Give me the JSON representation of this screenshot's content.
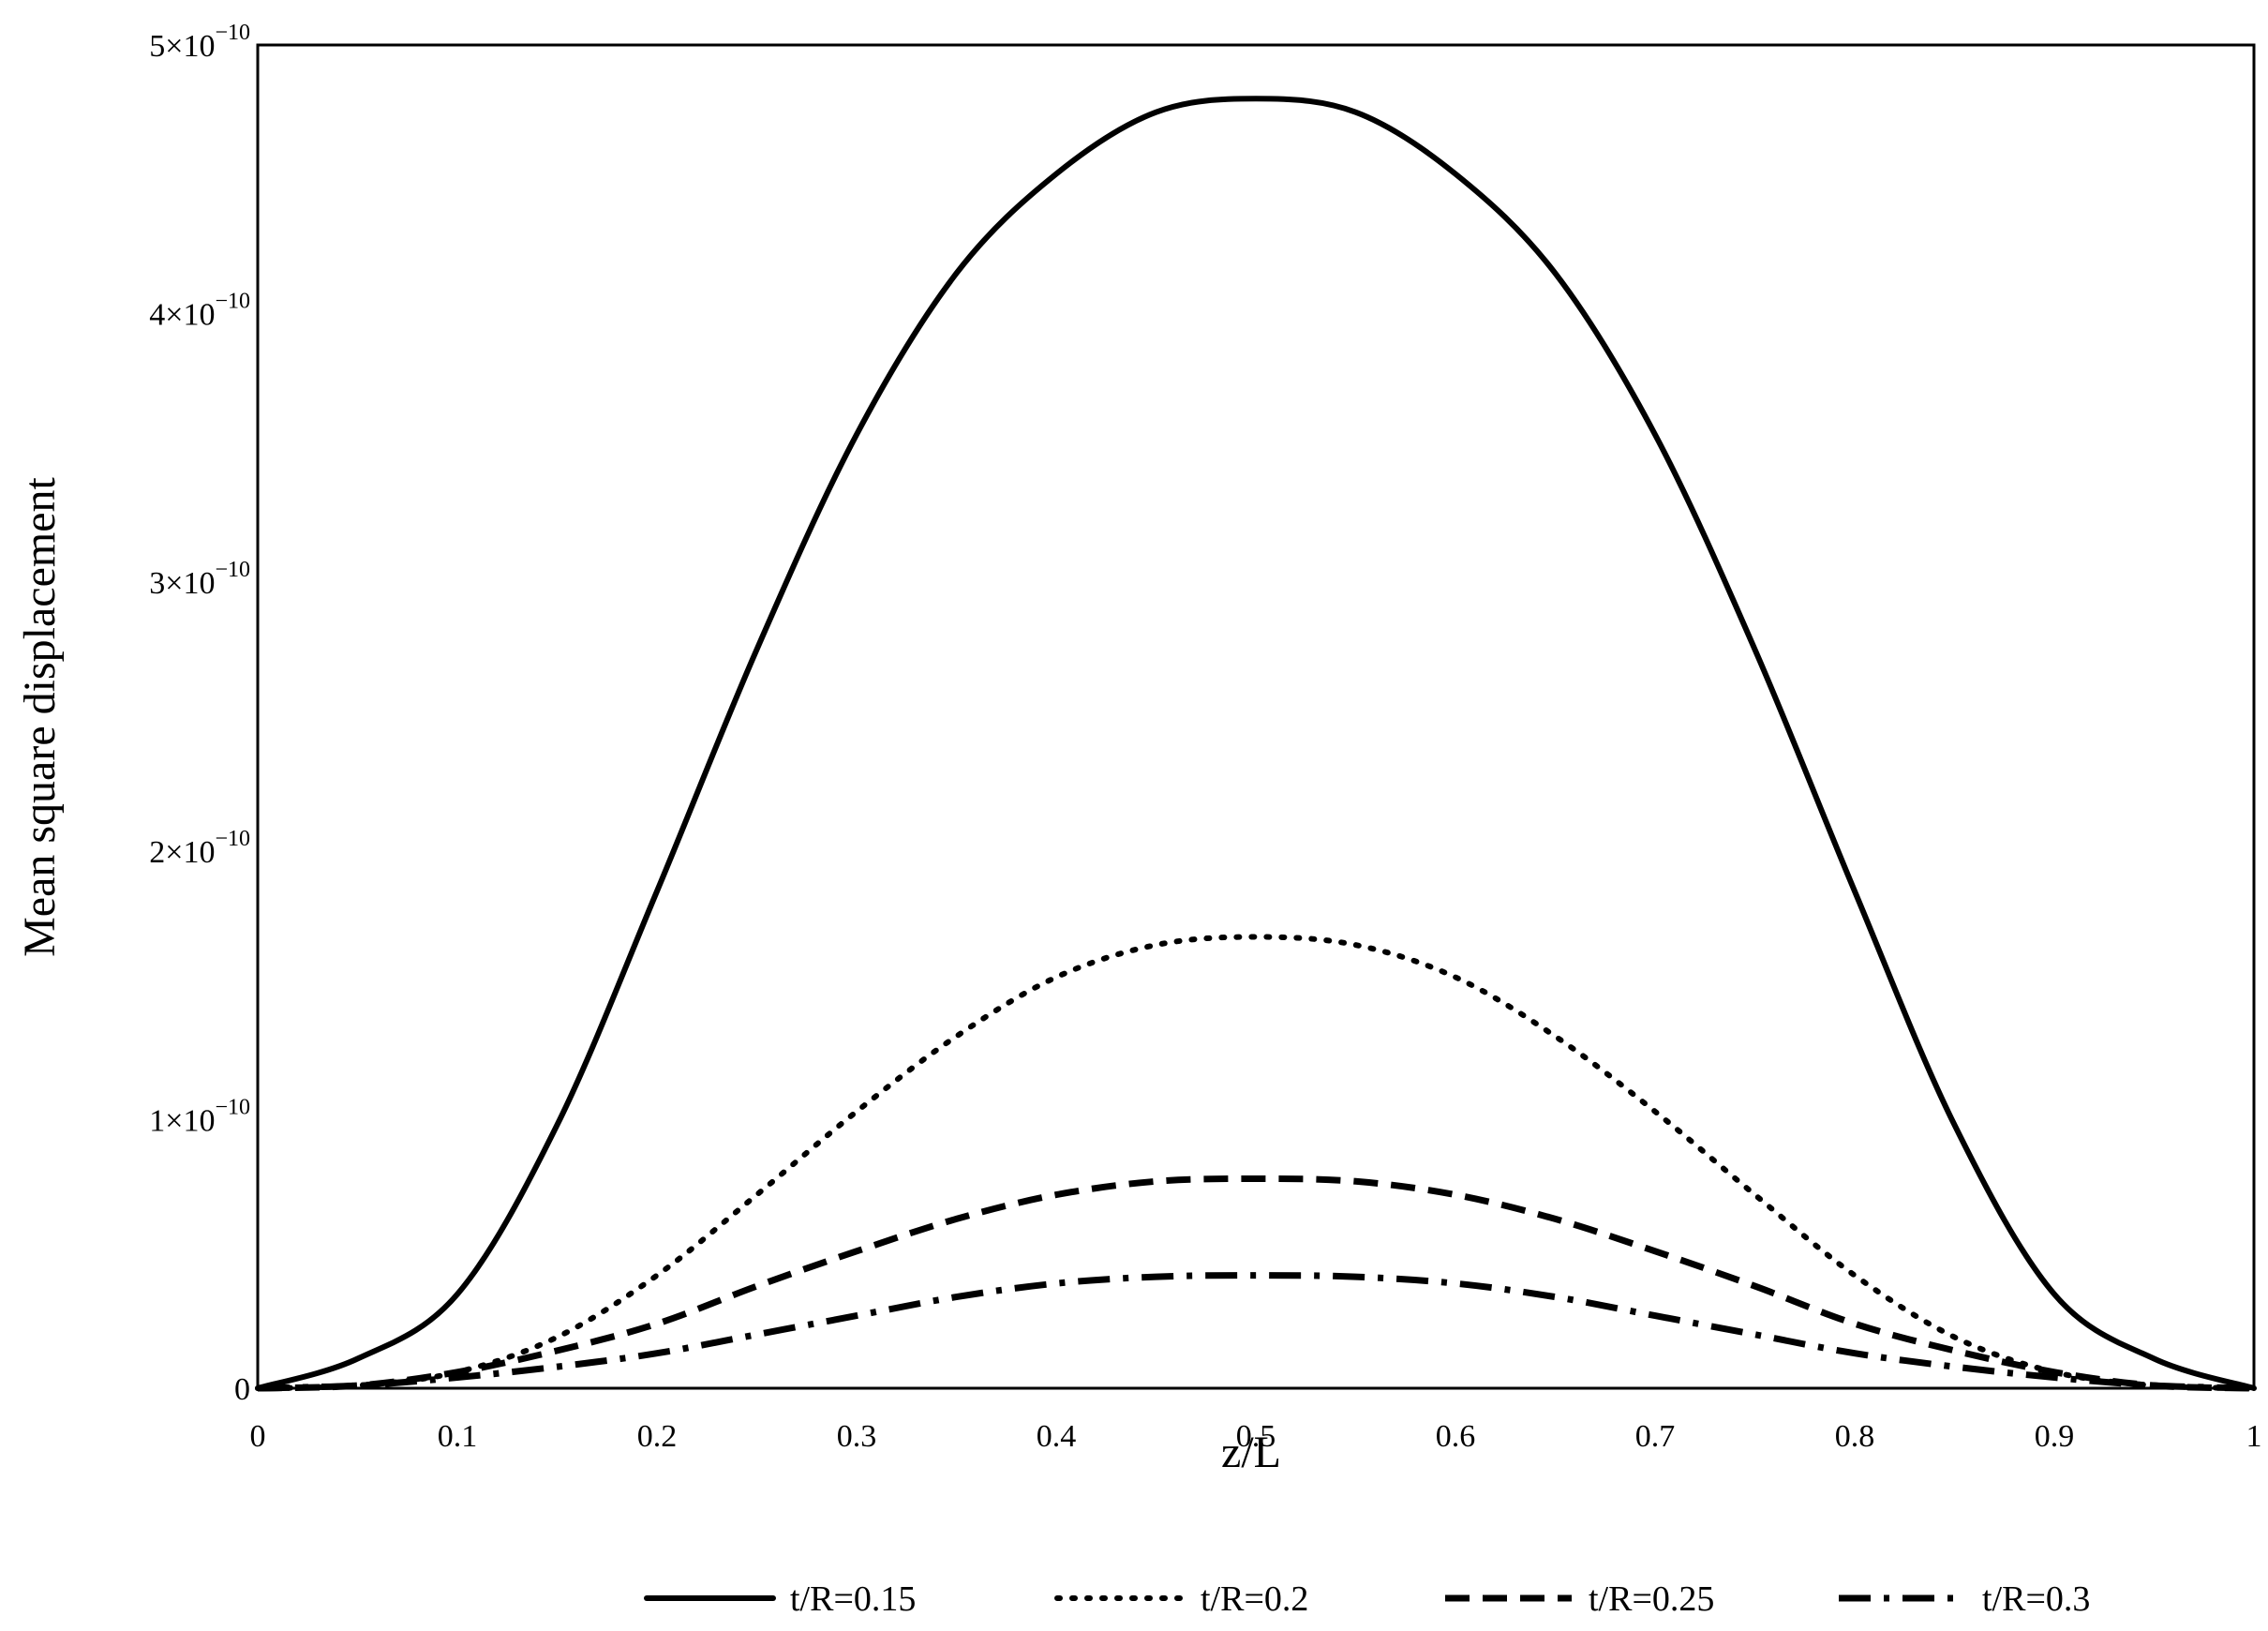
{
  "chart_data": {
    "type": "line",
    "xlabel": "z/L",
    "ylabel": "Mean square displacement",
    "xlim": [
      0,
      1
    ],
    "ylim": [
      0,
      5e-10
    ],
    "grid": false,
    "legend_position": "bottom",
    "x_ticks": [
      {
        "value": 0,
        "label": "0"
      },
      {
        "value": 0.1,
        "label": "0.1"
      },
      {
        "value": 0.2,
        "label": "0.2"
      },
      {
        "value": 0.3,
        "label": "0.3"
      },
      {
        "value": 0.4,
        "label": "0.4"
      },
      {
        "value": 0.5,
        "label": "0.5"
      },
      {
        "value": 0.6,
        "label": "0.6"
      },
      {
        "value": 0.7,
        "label": "0.7"
      },
      {
        "value": 0.8,
        "label": "0.8"
      },
      {
        "value": 0.9,
        "label": "0.9"
      },
      {
        "value": 1,
        "label": "1"
      }
    ],
    "y_ticks": [
      {
        "value": 0,
        "mantissa": "0",
        "times": "",
        "base": "",
        "exponent": ""
      },
      {
        "value": 1e-10,
        "mantissa": "1",
        "times": "×",
        "base": "10",
        "exponent": "−10"
      },
      {
        "value": 2e-10,
        "mantissa": "2",
        "times": "×",
        "base": "10",
        "exponent": "−10"
      },
      {
        "value": 3e-10,
        "mantissa": "3",
        "times": "×",
        "base": "10",
        "exponent": "−10"
      },
      {
        "value": 4e-10,
        "mantissa": "4",
        "times": "×",
        "base": "10",
        "exponent": "−10"
      },
      {
        "value": 5e-10,
        "mantissa": "5",
        "times": "×",
        "base": "10",
        "exponent": "−10"
      }
    ],
    "x": [
      0,
      0.05,
      0.1,
      0.15,
      0.2,
      0.25,
      0.3,
      0.35,
      0.4,
      0.45,
      0.5,
      0.55,
      0.6,
      0.65,
      0.7,
      0.75,
      0.8,
      0.85,
      0.9,
      0.95,
      1
    ],
    "series": [
      {
        "name": "t/R=0.15",
        "style": "solid",
        "values": [
          0,
          1.1e-11,
          3.5e-11,
          9.8e-11,
          1.85e-10,
          2.75e-10,
          3.55e-10,
          4.15e-10,
          4.52e-10,
          4.75e-10,
          4.8e-10,
          4.75e-10,
          4.52e-10,
          4.15e-10,
          3.55e-10,
          2.75e-10,
          1.85e-10,
          9.8e-11,
          3.5e-11,
          1.1e-11,
          0
        ]
      },
      {
        "name": "t/R=0.2",
        "style": "dotted",
        "values": [
          0,
          1e-12,
          6e-12,
          1.9e-11,
          4.2e-11,
          7.2e-11,
          1.03e-10,
          1.31e-10,
          1.53e-10,
          1.65e-10,
          1.68e-10,
          1.65e-10,
          1.53e-10,
          1.31e-10,
          1.03e-10,
          7.2e-11,
          4.2e-11,
          1.9e-11,
          6e-12,
          1e-12,
          0
        ]
      },
      {
        "name": "t/R=0.25",
        "style": "dashed",
        "values": [
          0,
          1e-12,
          6e-12,
          1.4e-11,
          2.4e-11,
          3.8e-11,
          5.1e-11,
          6.3e-11,
          7.2e-11,
          7.7e-11,
          7.8e-11,
          7.7e-11,
          7.2e-11,
          6.3e-11,
          5.1e-11,
          3.8e-11,
          2.4e-11,
          1.4e-11,
          6e-12,
          1e-12,
          0
        ]
      },
      {
        "name": "t/R=0.3",
        "style": "dashdot",
        "values": [
          0,
          1e-12,
          4e-12,
          8e-12,
          1.3e-11,
          2e-11,
          2.7e-11,
          3.4e-11,
          3.9e-11,
          4.15e-11,
          4.2e-11,
          4.15e-11,
          3.9e-11,
          3.4e-11,
          2.7e-11,
          2e-11,
          1.3e-11,
          8e-12,
          4e-12,
          1e-12,
          0
        ]
      }
    ]
  }
}
